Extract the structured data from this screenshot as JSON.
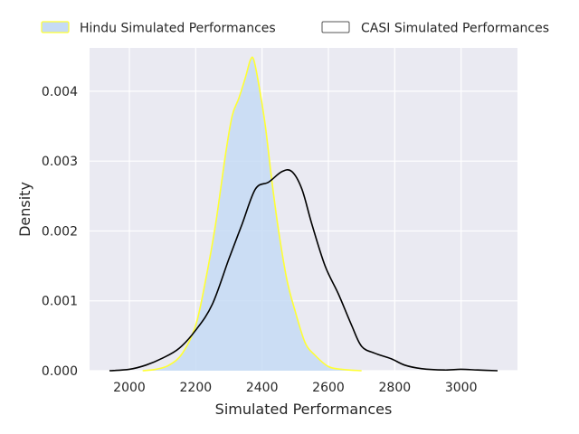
{
  "chart_data": {
    "type": "area",
    "title": "",
    "xlabel": "Simulated Performances",
    "ylabel": "Density",
    "xlim": [
      1880,
      3170
    ],
    "ylim": [
      0,
      0.00462
    ],
    "xticks": [
      2000,
      2200,
      2400,
      2600,
      2800,
      3000
    ],
    "yticks": [
      0.0,
      0.001,
      0.002,
      0.003,
      0.004
    ],
    "ytick_labels": [
      "0.000",
      "0.001",
      "0.002",
      "0.003",
      "0.004"
    ],
    "grid": true,
    "legend_position": "top",
    "series": [
      {
        "name": "Hindu Simulated Performances",
        "fill": "#c6dbf5",
        "line": "#ffff33",
        "filled": true,
        "points": [
          [
            2040,
            0
          ],
          [
            2080,
            2e-05
          ],
          [
            2120,
            8e-05
          ],
          [
            2160,
            0.00025
          ],
          [
            2200,
            0.00065
          ],
          [
            2230,
            0.0013
          ],
          [
            2260,
            0.0021
          ],
          [
            2290,
            0.0031
          ],
          [
            2310,
            0.00365
          ],
          [
            2330,
            0.0039
          ],
          [
            2350,
            0.0042
          ],
          [
            2365,
            0.00445
          ],
          [
            2375,
            0.00445
          ],
          [
            2390,
            0.0041
          ],
          [
            2410,
            0.0035
          ],
          [
            2430,
            0.0027
          ],
          [
            2450,
            0.002
          ],
          [
            2475,
            0.0013
          ],
          [
            2500,
            0.00085
          ],
          [
            2530,
            0.0004
          ],
          [
            2560,
            0.00022
          ],
          [
            2600,
            6e-05
          ],
          [
            2640,
            2e-05
          ],
          [
            2700,
            0.0
          ]
        ]
      },
      {
        "name": "CASI Simulated Performances",
        "fill": "none",
        "line": "#000000",
        "filled": false,
        "points": [
          [
            1940,
            0
          ],
          [
            2000,
            2e-05
          ],
          [
            2050,
            8e-05
          ],
          [
            2100,
            0.00018
          ],
          [
            2150,
            0.00032
          ],
          [
            2200,
            0.00058
          ],
          [
            2250,
            0.00095
          ],
          [
            2300,
            0.0016
          ],
          [
            2340,
            0.0021
          ],
          [
            2380,
            0.0026
          ],
          [
            2420,
            0.0027
          ],
          [
            2460,
            0.00285
          ],
          [
            2490,
            0.00285
          ],
          [
            2520,
            0.0026
          ],
          [
            2550,
            0.0021
          ],
          [
            2590,
            0.0015
          ],
          [
            2630,
            0.0011
          ],
          [
            2670,
            0.00065
          ],
          [
            2700,
            0.00035
          ],
          [
            2740,
            0.00025
          ],
          [
            2790,
            0.00017
          ],
          [
            2830,
            8e-05
          ],
          [
            2880,
            3e-05
          ],
          [
            2950,
            1e-05
          ],
          [
            3000,
            2e-05
          ],
          [
            3050,
            1e-05
          ],
          [
            3110,
            0.0
          ]
        ]
      }
    ]
  }
}
